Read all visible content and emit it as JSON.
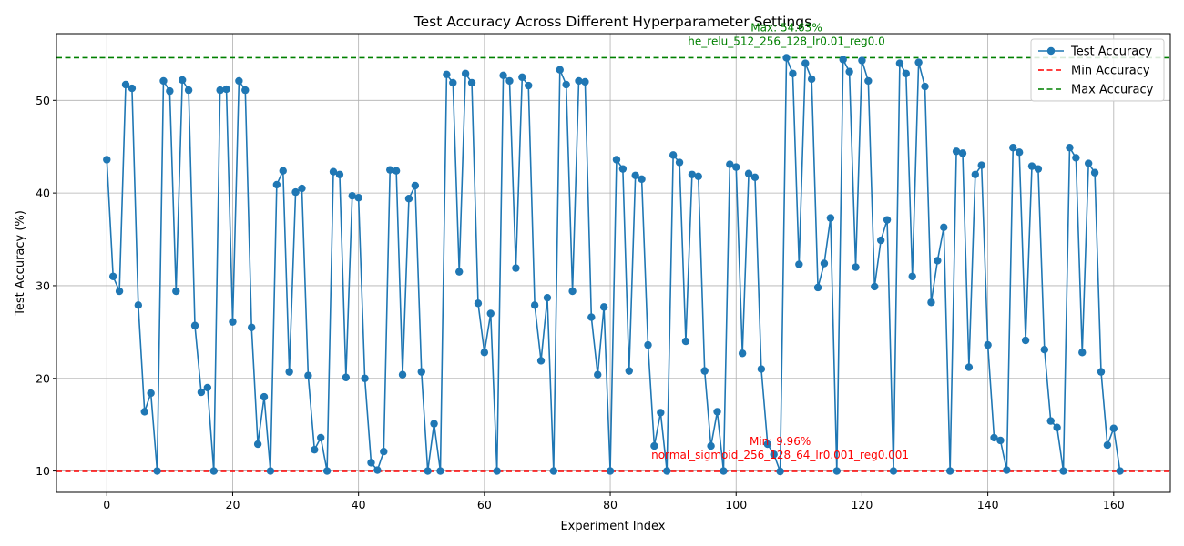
{
  "chart_data": {
    "type": "line",
    "title": "Test Accuracy Across Different Hyperparameter Settings",
    "xlabel": "Experiment Index",
    "ylabel": "Test Accuracy (%)",
    "xlim": [
      -8,
      169
    ],
    "ylim": [
      7.7,
      57.2
    ],
    "xticks": [
      0,
      20,
      40,
      60,
      80,
      100,
      120,
      140,
      160
    ],
    "yticks": [
      10,
      20,
      30,
      40,
      50
    ],
    "grid": true,
    "legend_position": "upper right",
    "series": [
      {
        "name": "Test Accuracy",
        "color": "#1f77b4",
        "marker": "circle",
        "x": [
          0,
          1,
          2,
          3,
          4,
          5,
          6,
          7,
          8,
          9,
          10,
          11,
          12,
          13,
          14,
          15,
          16,
          17,
          18,
          19,
          20,
          21,
          22,
          23,
          24,
          25,
          26,
          27,
          28,
          29,
          30,
          31,
          32,
          33,
          34,
          35,
          36,
          37,
          38,
          39,
          40,
          41,
          42,
          43,
          44,
          45,
          46,
          47,
          48,
          49,
          50,
          51,
          52,
          53,
          54,
          55,
          56,
          57,
          58,
          59,
          60,
          61,
          62,
          63,
          64,
          65,
          66,
          67,
          68,
          69,
          70,
          71,
          72,
          73,
          74,
          75,
          76,
          77,
          78,
          79,
          80,
          81,
          82,
          83,
          84,
          85,
          86,
          87,
          88,
          89,
          90,
          91,
          92,
          93,
          94,
          95,
          96,
          97,
          98,
          99,
          100,
          101,
          102,
          103,
          104,
          105,
          106,
          107,
          108,
          109,
          110,
          111,
          112,
          113,
          114,
          115,
          116,
          117,
          118,
          119,
          120,
          121,
          122,
          123,
          124,
          125,
          126,
          127,
          128,
          129,
          130,
          131,
          132,
          133,
          134,
          135,
          136,
          137,
          138,
          139,
          140,
          141,
          142,
          143,
          144,
          145,
          146,
          147,
          148,
          149,
          150,
          151,
          152,
          153,
          154,
          155,
          156,
          157,
          158,
          159,
          160,
          161
        ],
        "values": [
          43.6,
          31.0,
          29.4,
          51.7,
          51.3,
          27.9,
          16.4,
          18.4,
          10.0,
          52.1,
          51.0,
          29.4,
          52.2,
          51.1,
          25.7,
          18.5,
          19.0,
          10.0,
          51.1,
          51.2,
          26.1,
          52.1,
          51.1,
          25.5,
          12.9,
          18.0,
          10.0,
          40.9,
          42.4,
          20.7,
          40.1,
          40.5,
          20.3,
          12.3,
          13.6,
          10.0,
          42.3,
          42.0,
          20.1,
          39.7,
          39.5,
          20.0,
          10.9,
          10.1,
          12.1,
          42.5,
          42.4,
          20.4,
          39.4,
          40.8,
          20.7,
          10.0,
          15.1,
          10.0,
          52.8,
          51.9,
          31.5,
          52.9,
          51.9,
          28.1,
          22.8,
          27.0,
          10.0,
          52.7,
          52.1,
          31.9,
          52.5,
          51.6,
          27.9,
          21.9,
          28.7,
          10.0,
          53.3,
          51.7,
          29.4,
          52.1,
          52.0,
          26.6,
          20.4,
          27.7,
          10.0,
          43.6,
          42.6,
          20.8,
          41.9,
          41.5,
          23.6,
          12.7,
          16.3,
          10.0,
          44.1,
          43.3,
          24.0,
          42.0,
          41.8,
          20.8,
          12.7,
          16.4,
          10.0,
          43.1,
          42.8,
          22.7,
          42.1,
          41.7,
          21.0,
          12.9,
          11.8,
          9.96,
          54.6,
          52.9,
          32.3,
          54.0,
          52.3,
          29.8,
          32.4,
          37.3,
          10.0,
          54.4,
          53.1,
          32.0,
          54.3,
          52.1,
          29.9,
          34.9,
          37.1,
          10.0,
          54.0,
          52.9,
          31.0,
          54.1,
          51.5,
          28.2,
          32.7,
          36.3,
          10.0,
          44.5,
          44.3,
          21.2,
          42.0,
          43.0,
          23.6,
          13.6,
          13.3,
          10.1,
          44.9,
          44.4,
          24.1,
          42.9,
          42.6,
          23.1,
          15.4,
          14.7,
          10.0,
          44.9,
          43.8,
          22.8,
          43.2,
          42.2,
          20.7,
          12.8,
          14.6,
          10.0
        ]
      }
    ],
    "reference_lines": [
      {
        "name": "Min Accuracy",
        "y": 9.96,
        "color": "#ff0000",
        "style": "dashed"
      },
      {
        "name": "Max Accuracy",
        "y": 54.6,
        "color": "#008000",
        "style": "dashed"
      }
    ],
    "annotations": [
      {
        "text_line1": "Max: 54.63%",
        "text_line2": "he_relu_512_256_128_lr0.01_reg0.0",
        "x": 108,
        "y": 54.6,
        "color": "#008000"
      },
      {
        "text_line1": "Min: 9.96%",
        "text_line2": "normal_sigmoid_256_128_64_lr0.001_reg0.001",
        "x": 107,
        "y": 9.96,
        "color": "#ff0000"
      }
    ],
    "legend": [
      "Test Accuracy",
      "Min Accuracy",
      "Max Accuracy"
    ]
  }
}
